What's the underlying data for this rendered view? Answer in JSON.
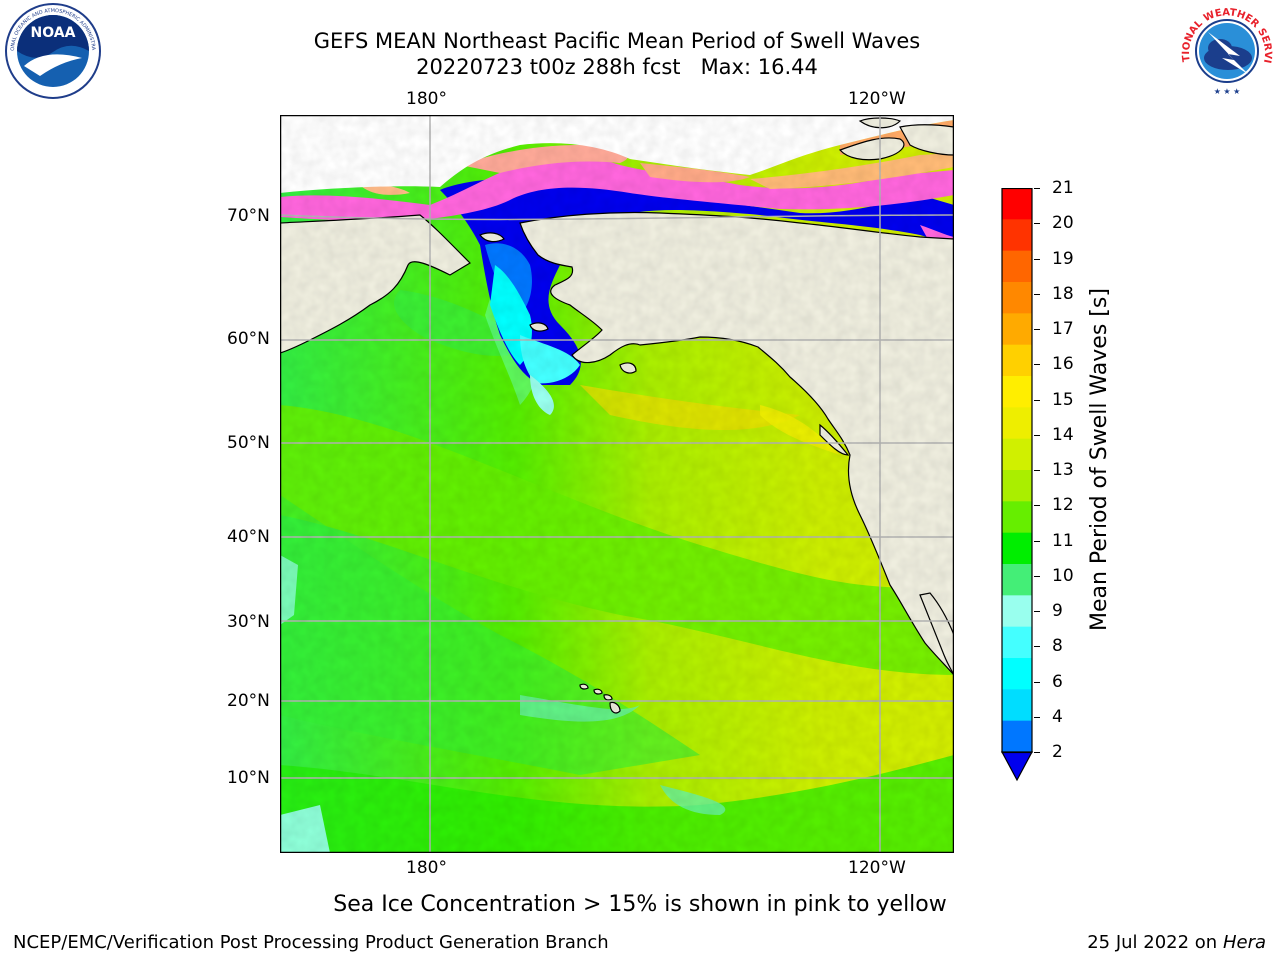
{
  "title": {
    "line1": "GEFS MEAN Northeast Pacific Mean Period of Swell Waves",
    "line2": "20220723 t00z 288h fcst   Max: 16.44"
  },
  "map": {
    "lon_labels": [
      "180°",
      "120°W"
    ],
    "lat_labels": [
      "70°N",
      "60°N",
      "50°N",
      "40°N",
      "30°N",
      "20°N",
      "10°N"
    ],
    "land_color": "#efeedf",
    "grid_color": "#b3b3b3"
  },
  "colorbar": {
    "label": "Mean Period of Swell Waves [s]",
    "ticks": [
      "21",
      "20",
      "19",
      "18",
      "17",
      "16",
      "15",
      "14",
      "13",
      "12",
      "11",
      "10",
      "9",
      "8",
      "6",
      "4",
      "2"
    ],
    "colors_top_to_bottom": [
      "#ff0000",
      "#ff3300",
      "#ff6600",
      "#ff8800",
      "#ffaa00",
      "#ffd000",
      "#ffee00",
      "#eeee00",
      "#d0f000",
      "#aaee00",
      "#66ee00",
      "#00ee00",
      "#44ee77",
      "#99ffee",
      "#44ffff",
      "#00ffff",
      "#00ddff",
      "#0077ff"
    ],
    "extend_color": "#0000ee"
  },
  "caption": "Sea Ice Concentration > 15% is shown in pink to yellow",
  "footer": {
    "left": "NCEP/EMC/Verification Post Processing Product Generation Branch",
    "right_prefix": "25 Jul 2022 on ",
    "right_host": "Hera"
  },
  "logos": {
    "left": "NOAA",
    "right": "NATIONAL WEATHER SERVICE"
  }
}
